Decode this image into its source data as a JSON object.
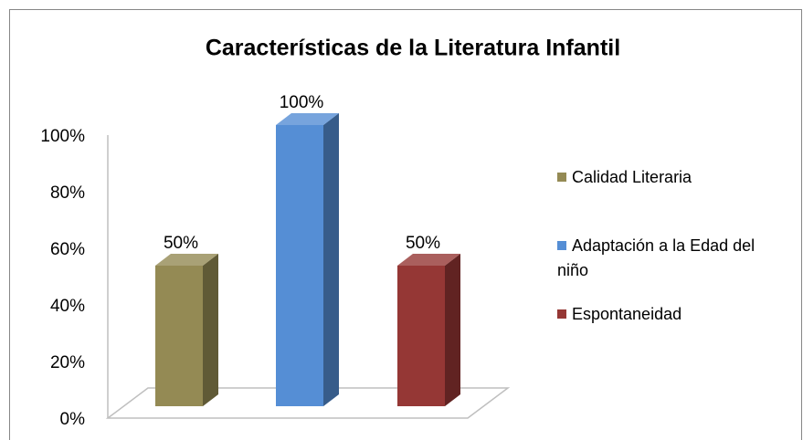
{
  "chart_data": {
    "type": "bar",
    "title": "Características de la Literatura Infantil",
    "categories": [
      null
    ],
    "series": [
      {
        "name": "Calidad Literaria",
        "color": "#948a54",
        "values": [
          50
        ],
        "value_labels": [
          "50%"
        ]
      },
      {
        "name": "Adaptación a la Edad del niño",
        "color": "#558ed5",
        "values": [
          100
        ],
        "value_labels": [
          "100%"
        ]
      },
      {
        "name": "Espontaneidad",
        "color": "#953735",
        "values": [
          50
        ],
        "value_labels": [
          "50%"
        ]
      }
    ],
    "ylim": [
      0,
      100
    ],
    "yticks": [
      {
        "value": 0,
        "label": "0%"
      },
      {
        "value": 20,
        "label": "20%"
      },
      {
        "value": 40,
        "label": "40%"
      },
      {
        "value": 60,
        "label": "60%"
      },
      {
        "value": 80,
        "label": "80%"
      },
      {
        "value": 100,
        "label": "100%"
      }
    ],
    "legend": "right"
  }
}
